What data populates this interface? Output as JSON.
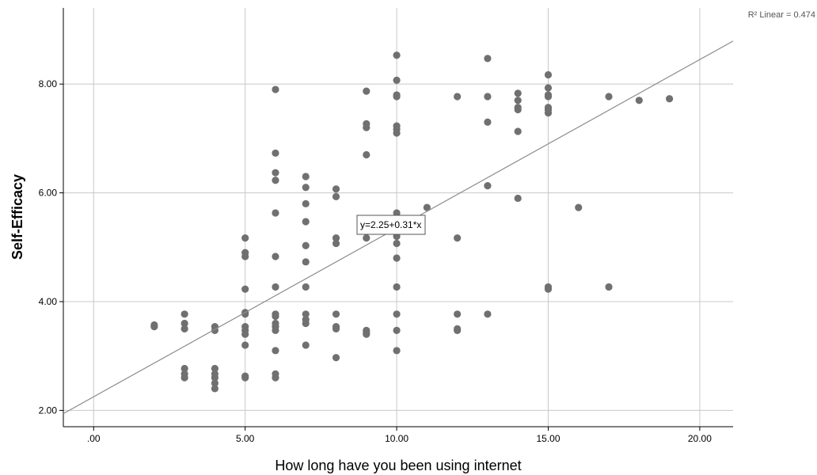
{
  "chart_data": {
    "type": "scatter",
    "xlabel": "How long have you been using internet",
    "ylabel": "Self-Efficacy",
    "xlim": [
      -1,
      21.1
    ],
    "ylim": [
      1.7,
      9.4
    ],
    "x_ticks": [
      {
        "value": 0,
        "label": ".00"
      },
      {
        "value": 5,
        "label": "5.00"
      },
      {
        "value": 10,
        "label": "10.00"
      },
      {
        "value": 15,
        "label": "15.00"
      },
      {
        "value": 20,
        "label": "20.00"
      }
    ],
    "y_ticks": [
      {
        "value": 2,
        "label": "2.00"
      },
      {
        "value": 4,
        "label": "4.00"
      },
      {
        "value": 6,
        "label": "6.00"
      },
      {
        "value": 8,
        "label": "8.00"
      }
    ],
    "grid": true,
    "r2_label": "R² Linear = 0.474",
    "r2": 0.474,
    "fit_equation": "y=2.25+0.31*x",
    "fit": {
      "intercept": 2.25,
      "slope": 0.31
    },
    "colors": {
      "points": "#707070",
      "fit_line": "#8c8c8c",
      "grid": "#c8c8c8"
    },
    "points": [
      [
        2,
        3.57
      ],
      [
        2,
        3.54
      ],
      [
        3,
        3.77
      ],
      [
        3,
        3.6
      ],
      [
        3,
        3.5
      ],
      [
        3,
        2.77
      ],
      [
        3,
        2.67
      ],
      [
        3,
        2.6
      ],
      [
        4,
        3.54
      ],
      [
        4,
        3.47
      ],
      [
        4,
        2.77
      ],
      [
        4,
        2.67
      ],
      [
        4,
        2.6
      ],
      [
        4,
        2.5
      ],
      [
        4,
        2.4
      ],
      [
        5,
        5.17
      ],
      [
        5,
        4.9
      ],
      [
        5,
        4.83
      ],
      [
        5,
        4.23
      ],
      [
        5,
        3.8
      ],
      [
        5,
        3.77
      ],
      [
        5,
        3.54
      ],
      [
        5,
        3.47
      ],
      [
        5,
        3.4
      ],
      [
        5,
        3.2
      ],
      [
        5,
        2.63
      ],
      [
        5,
        2.6
      ],
      [
        6,
        7.9
      ],
      [
        6,
        6.73
      ],
      [
        6,
        6.37
      ],
      [
        6,
        6.23
      ],
      [
        6,
        5.63
      ],
      [
        6,
        4.83
      ],
      [
        6,
        4.27
      ],
      [
        6,
        3.77
      ],
      [
        6,
        3.73
      ],
      [
        6,
        3.6
      ],
      [
        6,
        3.54
      ],
      [
        6,
        3.47
      ],
      [
        6,
        3.1
      ],
      [
        6,
        2.67
      ],
      [
        6,
        2.6
      ],
      [
        7,
        6.3
      ],
      [
        7,
        6.1
      ],
      [
        7,
        5.8
      ],
      [
        7,
        5.47
      ],
      [
        7,
        5.03
      ],
      [
        7,
        4.73
      ],
      [
        7,
        4.27
      ],
      [
        7,
        3.77
      ],
      [
        7,
        3.67
      ],
      [
        7,
        3.6
      ],
      [
        7,
        3.2
      ],
      [
        8,
        6.07
      ],
      [
        8,
        5.93
      ],
      [
        8,
        5.17
      ],
      [
        8,
        5.07
      ],
      [
        8,
        3.77
      ],
      [
        8,
        3.54
      ],
      [
        8,
        3.5
      ],
      [
        8,
        2.97
      ],
      [
        9,
        7.87
      ],
      [
        9,
        7.27
      ],
      [
        9,
        7.2
      ],
      [
        9,
        6.7
      ],
      [
        9,
        5.17
      ],
      [
        9,
        3.47
      ],
      [
        9,
        3.43
      ],
      [
        9,
        3.4
      ],
      [
        10,
        8.53
      ],
      [
        10,
        8.07
      ],
      [
        10,
        7.8
      ],
      [
        10,
        7.77
      ],
      [
        10,
        7.23
      ],
      [
        10,
        7.17
      ],
      [
        10,
        7.1
      ],
      [
        10,
        5.63
      ],
      [
        10,
        5.2
      ],
      [
        10,
        5.07
      ],
      [
        10,
        4.8
      ],
      [
        10,
        4.27
      ],
      [
        10,
        3.77
      ],
      [
        10,
        3.47
      ],
      [
        10,
        3.1
      ],
      [
        11,
        5.73
      ],
      [
        12,
        7.77
      ],
      [
        12,
        5.17
      ],
      [
        12,
        3.77
      ],
      [
        12,
        3.5
      ],
      [
        12,
        3.47
      ],
      [
        13,
        8.47
      ],
      [
        13,
        7.77
      ],
      [
        13,
        7.3
      ],
      [
        13,
        6.13
      ],
      [
        13,
        3.77
      ],
      [
        14,
        7.83
      ],
      [
        14,
        7.7
      ],
      [
        14,
        7.57
      ],
      [
        14,
        7.53
      ],
      [
        14,
        7.13
      ],
      [
        14,
        5.9
      ],
      [
        15,
        8.17
      ],
      [
        15,
        7.93
      ],
      [
        15,
        7.8
      ],
      [
        15,
        7.77
      ],
      [
        15,
        7.57
      ],
      [
        15,
        7.53
      ],
      [
        15,
        7.47
      ],
      [
        15,
        4.27
      ],
      [
        15,
        4.23
      ],
      [
        16,
        5.73
      ],
      [
        17,
        7.77
      ],
      [
        17,
        4.27
      ],
      [
        18,
        7.7
      ],
      [
        19,
        7.73
      ]
    ]
  }
}
